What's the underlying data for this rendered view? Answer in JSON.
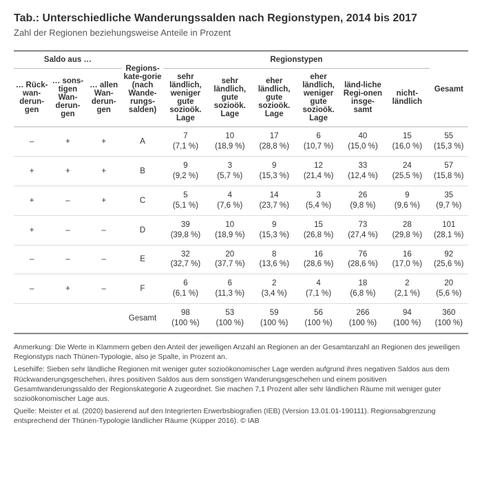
{
  "title": "Tab.: Unterschiedliche Wanderungssalden nach Regionstypen, 2014 bis 2017",
  "subtitle": "Zahl der Regionen beziehungsweise Anteile in Prozent",
  "headers": {
    "saldo_group": "Saldo aus …",
    "saldo_cols": [
      "… Rück-wan-derun-gen",
      "… sons-tigen Wan-derun-gen",
      "… allen Wan-derun-gen"
    ],
    "krit": "Regions-kate-gorie (nach Wande-rungs-salden)",
    "regionstypen_group": "Regionstypen",
    "regionstypen_cols": [
      "sehr ländlich, weniger gute sozioök. Lage",
      "sehr ländlich, gute sozioök. Lage",
      "eher ländlich, gute sozioök. Lage",
      "eher ländlich, weniger gute sozioök. Lage",
      "länd-liche Regi-onen insge-samt",
      "nicht-ländlich"
    ],
    "gesamt": "Gesamt"
  },
  "rows": [
    {
      "s": [
        "–",
        "+",
        "+"
      ],
      "k": "A",
      "c": [
        {
          "n": "7",
          "p": "(7,1 %)"
        },
        {
          "n": "10",
          "p": "(18,9 %)"
        },
        {
          "n": "17",
          "p": "(28,8 %)"
        },
        {
          "n": "6",
          "p": "(10,7 %)"
        },
        {
          "n": "40",
          "p": "(15,0 %)"
        },
        {
          "n": "15",
          "p": "(16,0 %)"
        }
      ],
      "g": {
        "n": "55",
        "p": "(15,3 %)"
      }
    },
    {
      "s": [
        "+",
        "+",
        "+"
      ],
      "k": "B",
      "c": [
        {
          "n": "9",
          "p": "(9,2 %)"
        },
        {
          "n": "3",
          "p": "(5,7 %)"
        },
        {
          "n": "9",
          "p": "(15,3 %)"
        },
        {
          "n": "12",
          "p": "(21,4 %)"
        },
        {
          "n": "33",
          "p": "(12,4 %)"
        },
        {
          "n": "24",
          "p": "(25,5 %)"
        }
      ],
      "g": {
        "n": "57",
        "p": "(15,8 %)"
      }
    },
    {
      "s": [
        "+",
        "–",
        "+"
      ],
      "k": "C",
      "c": [
        {
          "n": "5",
          "p": "(5,1 %)"
        },
        {
          "n": "4",
          "p": "(7,6 %)"
        },
        {
          "n": "14",
          "p": "(23,7 %)"
        },
        {
          "n": "3",
          "p": "(5,4 %)"
        },
        {
          "n": "26",
          "p": "(9,8 %)"
        },
        {
          "n": "9",
          "p": "(9,6 %)"
        }
      ],
      "g": {
        "n": "35",
        "p": "(9,7 %)"
      }
    },
    {
      "s": [
        "+",
        "–",
        "–"
      ],
      "k": "D",
      "c": [
        {
          "n": "39",
          "p": "(39,8 %)"
        },
        {
          "n": "10",
          "p": "(18,9 %)"
        },
        {
          "n": "9",
          "p": "(15,3 %)"
        },
        {
          "n": "15",
          "p": "(26,8 %)"
        },
        {
          "n": "73",
          "p": "(27,4 %)"
        },
        {
          "n": "28",
          "p": "(29,8 %)"
        }
      ],
      "g": {
        "n": "101",
        "p": "(28,1 %)"
      }
    },
    {
      "s": [
        "–",
        "–",
        "–"
      ],
      "k": "E",
      "c": [
        {
          "n": "32",
          "p": "(32,7 %)"
        },
        {
          "n": "20",
          "p": "(37,7 %)"
        },
        {
          "n": "8",
          "p": "(13,6 %)"
        },
        {
          "n": "16",
          "p": "(28,6 %)"
        },
        {
          "n": "76",
          "p": "(28,6 %)"
        },
        {
          "n": "16",
          "p": "(17,0 %)"
        }
      ],
      "g": {
        "n": "92",
        "p": "(25,6 %)"
      }
    },
    {
      "s": [
        "–",
        "+",
        "–"
      ],
      "k": "F",
      "c": [
        {
          "n": "6",
          "p": "(6,1 %)"
        },
        {
          "n": "6",
          "p": "(11,3 %)"
        },
        {
          "n": "2",
          "p": "(3,4 %)"
        },
        {
          "n": "4",
          "p": "(7,1 %)"
        },
        {
          "n": "18",
          "p": "(6,8 %)"
        },
        {
          "n": "2",
          "p": "(2,1 %)"
        }
      ],
      "g": {
        "n": "20",
        "p": "(5,6 %)"
      }
    }
  ],
  "total_label": "Gesamt",
  "totals": {
    "c": [
      {
        "n": "98",
        "p": "(100 %)"
      },
      {
        "n": "53",
        "p": "(100 %)"
      },
      {
        "n": "59",
        "p": "(100 %)"
      },
      {
        "n": "56",
        "p": "(100 %)"
      },
      {
        "n": "266",
        "p": "(100 %)"
      },
      {
        "n": "94",
        "p": "(100 %)"
      }
    ],
    "g": {
      "n": "360",
      "p": "(100 %)"
    }
  },
  "footnotes": {
    "anmerkung": "Anmerkung: Die Werte in Klammern geben den Anteil der jeweiligen Anzahl an Regionen an der Gesamtanzahl an Regionen des jeweiligen Regionstyps nach Thünen-Typologie, also je Spalte, in Prozent an.",
    "lesehilfe": "Lesehilfe: Sieben sehr ländliche Regionen mit weniger guter sozioökonomischer Lage werden aufgrund ihres negativen Saldos aus dem Rückwanderungsgeschehen, ihres positiven Saldos aus dem sonstigen Wanderungsgeschehen und einem positiven Gesamtwanderungssaldo der Regionskategorie A zugeordnet. Sie machen 7,1 Prozent aller sehr ländlichen Räume mit weniger guter sozioökonomischer Lage aus.",
    "quelle": "Quelle: Meister et al. (2020) basierend auf den Integrierten Erwerbsbiografien (IEB) (Version 13.01.01-190111). Regionsabgrenzung entsprechend der Thünen-Typologie ländlicher Räume (Küpper 2016). © IAB"
  },
  "colors": {
    "border_strong": "#888",
    "border_light": "#ddd",
    "text": "#333",
    "bg": "#fff"
  }
}
